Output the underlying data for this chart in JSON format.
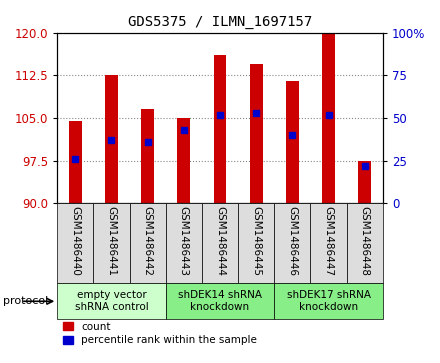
{
  "title": "GDS5375 / ILMN_1697157",
  "samples": [
    "GSM1486440",
    "GSM1486441",
    "GSM1486442",
    "GSM1486443",
    "GSM1486444",
    "GSM1486445",
    "GSM1486446",
    "GSM1486447",
    "GSM1486448"
  ],
  "counts": [
    104.5,
    112.5,
    106.5,
    105.0,
    116.0,
    114.5,
    111.5,
    120.0,
    97.5
  ],
  "percentile_ranks": [
    26,
    37,
    36,
    43,
    52,
    53,
    40,
    52,
    22
  ],
  "ylim_left": [
    90,
    120
  ],
  "yticks_left": [
    90,
    97.5,
    105,
    112.5,
    120
  ],
  "ylim_right": [
    0,
    100
  ],
  "yticks_right": [
    0,
    25,
    50,
    75,
    100
  ],
  "bar_color": "#cc0000",
  "dot_color": "#0000cc",
  "bar_bottom": 90,
  "groups": [
    {
      "label": "empty vector\nshRNA control",
      "start": 0,
      "end": 3,
      "color": "#ccffcc"
    },
    {
      "label": "shDEK14 shRNA\nknockdown",
      "start": 3,
      "end": 6,
      "color": "#88ee88"
    },
    {
      "label": "shDEK17 shRNA\nknockdown",
      "start": 6,
      "end": 9,
      "color": "#88ee88"
    }
  ],
  "legend_count_color": "#cc0000",
  "legend_percentile_color": "#0000cc",
  "left_tick_color": "#cc0000",
  "right_tick_color": "#0000cc",
  "grid_color": "#888888",
  "sample_box_color": "#dddddd",
  "bar_width": 0.35
}
